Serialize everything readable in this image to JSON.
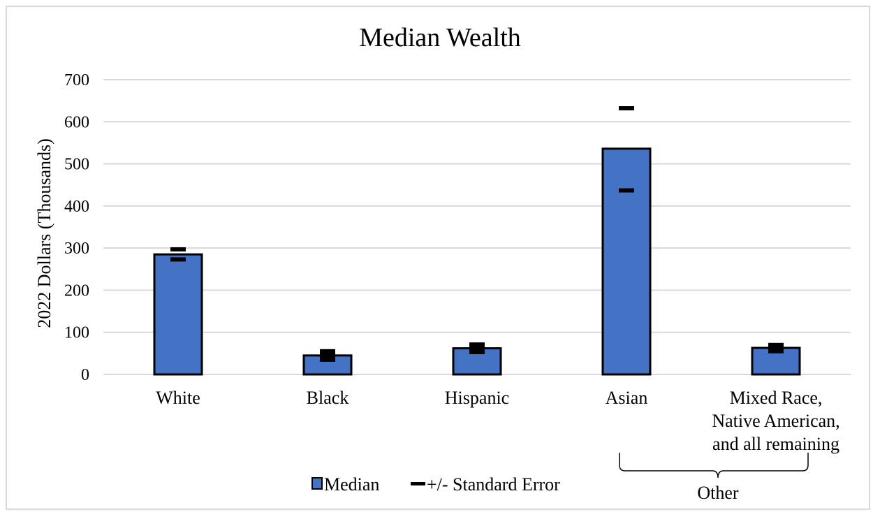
{
  "chart_data": {
    "type": "bar",
    "title": "Median Wealth",
    "xlabel": "",
    "ylabel": "2022 Dollars (Thousands)",
    "ylim": [
      0,
      700
    ],
    "yticks": [
      0,
      100,
      200,
      300,
      400,
      500,
      600,
      700
    ],
    "grid": true,
    "legend_position": "bottom",
    "categories": [
      [
        "White"
      ],
      [
        "Black"
      ],
      [
        "Hispanic"
      ],
      [
        "Asian"
      ],
      [
        "Mixed Race,",
        "Native American,",
        "and all remaining"
      ]
    ],
    "series": [
      {
        "name": "Median",
        "values": [
          285,
          45,
          62,
          536,
          63
        ],
        "color": "#4472c4"
      },
      {
        "name": "+/- Standard Error",
        "lower": [
          273,
          35,
          53,
          437,
          55
        ],
        "upper": [
          297,
          55,
          71,
          632,
          70
        ],
        "color": "#000000"
      }
    ],
    "group_bracket": {
      "label": "Other",
      "from_category": 3,
      "to_category": 4
    }
  }
}
